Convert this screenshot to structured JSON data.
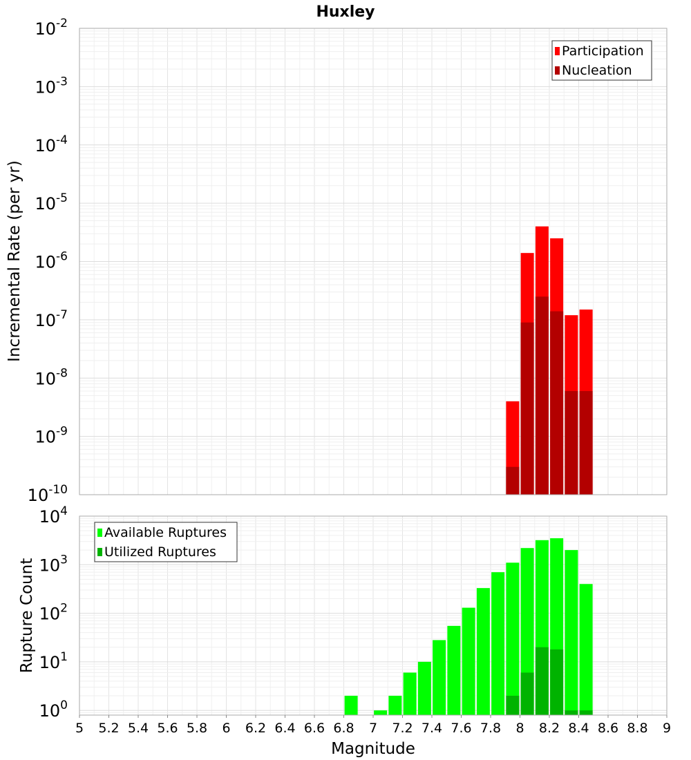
{
  "chart_data": [
    {
      "type": "bar",
      "title": "Huxley",
      "xlabel": "",
      "ylabel": "Incremental Rate (per yr)",
      "yscale": "log",
      "ylim": [
        1e-10,
        0.01
      ],
      "xlim": [
        5,
        9
      ],
      "y_tick_exponents": [
        "-10",
        "-9",
        "-8",
        "-7",
        "-6",
        "-5",
        "-4",
        "-3",
        "-2"
      ],
      "grid": true,
      "legend_placement": "top-right",
      "x": [
        7.95,
        8.05,
        8.15,
        8.25,
        8.35,
        8.45
      ],
      "series": [
        {
          "name": "Participation",
          "color": "#ff0000",
          "values": [
            4e-09,
            1.4e-06,
            4e-06,
            2.5e-06,
            1.2e-07,
            1.5e-07
          ]
        },
        {
          "name": "Nucleation",
          "color": "#b30000",
          "values": [
            3e-10,
            9e-08,
            2.5e-07,
            1.4e-07,
            6e-09,
            6e-09
          ]
        }
      ]
    },
    {
      "type": "bar",
      "title": "",
      "xlabel": "Magnitude",
      "ylabel": "Rupture Count",
      "yscale": "log",
      "ylim": [
        0.8,
        10000
      ],
      "xlim": [
        5,
        9
      ],
      "x_ticks": [
        "5",
        "5.2",
        "5.4",
        "5.6",
        "5.8",
        "6",
        "6.2",
        "6.4",
        "6.6",
        "6.8",
        "7",
        "7.2",
        "7.4",
        "7.6",
        "7.8",
        "8",
        "8.2",
        "8.4",
        "8.6",
        "8.8",
        "9"
      ],
      "y_tick_exponents": [
        "0",
        "1",
        "2",
        "3",
        "4"
      ],
      "grid": true,
      "legend_placement": "top-left",
      "series": [
        {
          "name": "Available Ruptures",
          "color": "#00ff00",
          "x": [
            6.85,
            7.05,
            7.15,
            7.25,
            7.35,
            7.45,
            7.55,
            7.65,
            7.75,
            7.85,
            7.95,
            8.05,
            8.15,
            8.25,
            8.35,
            8.45
          ],
          "values": [
            2,
            1,
            2,
            6,
            10,
            28,
            55,
            130,
            330,
            700,
            1100,
            2200,
            3200,
            3500,
            2000,
            400
          ]
        },
        {
          "name": "Utilized Ruptures",
          "color": "#00b300",
          "x": [
            7.95,
            8.05,
            8.15,
            8.25,
            8.35,
            8.45
          ],
          "values": [
            2,
            6,
            20,
            18,
            1,
            1
          ]
        }
      ]
    }
  ]
}
